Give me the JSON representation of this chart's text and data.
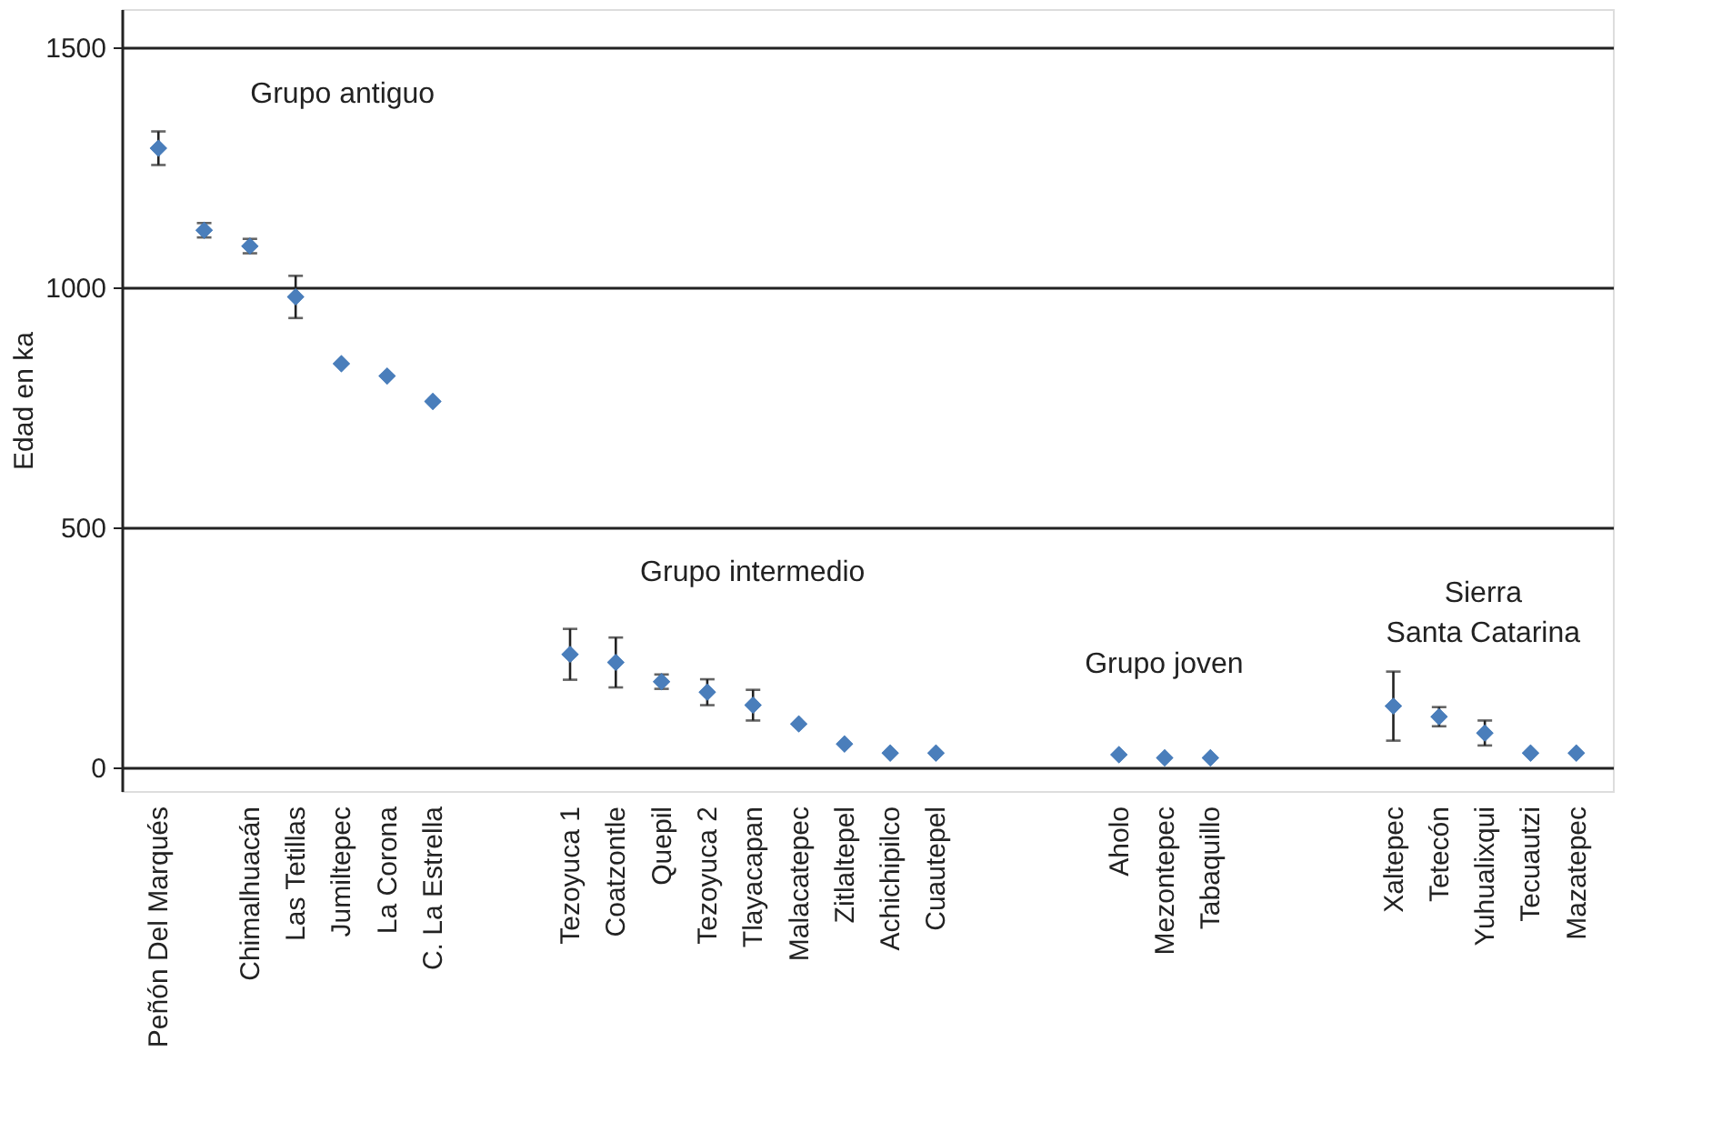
{
  "chart_data": {
    "type": "scatter",
    "ylabel": "Edad en ka",
    "color": "#4a7ebb",
    "marker": "diamond",
    "grid": "y",
    "ylim": [
      -50,
      1580
    ],
    "yticks": [
      0,
      500,
      {
        "value": 1000,
        "label": "1000"
      },
      {
        "value": 1500,
        "label": "1500"
      }
    ],
    "categories": [
      "Peñón Del Marqués",
      null,
      "Chimalhuacán",
      "Las Tetillas",
      "Jumiltepec",
      "La Corona",
      "C. La Estrella",
      null,
      null,
      "Tezoyuca 1",
      "Coatzontle",
      "Quepil",
      "Tezoyuca 2",
      "Tlayacapan",
      "Malacatepec",
      "Zitlaltepel",
      "Achichipilco",
      "Cuautepel",
      null,
      null,
      null,
      "Aholo",
      "Mezontepec",
      "Tabaquillo",
      null,
      null,
      null,
      "Xaltepec",
      "Tetecón",
      "Yuhualixqui",
      "Tecuautzi",
      "Mazatepec"
    ],
    "values": [
      1290,
      1119,
      1086,
      980,
      841,
      815,
      762,
      null,
      null,
      235,
      218,
      178,
      156,
      129,
      90,
      48,
      29,
      29,
      null,
      null,
      null,
      26,
      19,
      19,
      null,
      null,
      null,
      127,
      105,
      71,
      29,
      29
    ],
    "errors": [
      35,
      15,
      15,
      44,
      null,
      null,
      null,
      null,
      null,
      53,
      52,
      15,
      27,
      32,
      null,
      null,
      null,
      null,
      null,
      null,
      null,
      null,
      null,
      null,
      null,
      null,
      null,
      72,
      20,
      26,
      null,
      null
    ],
    "annotations": [
      "Grupo antiguo",
      "Grupo intermedio",
      "Grupo joven",
      "Sierra\nSanta Catarina"
    ]
  }
}
